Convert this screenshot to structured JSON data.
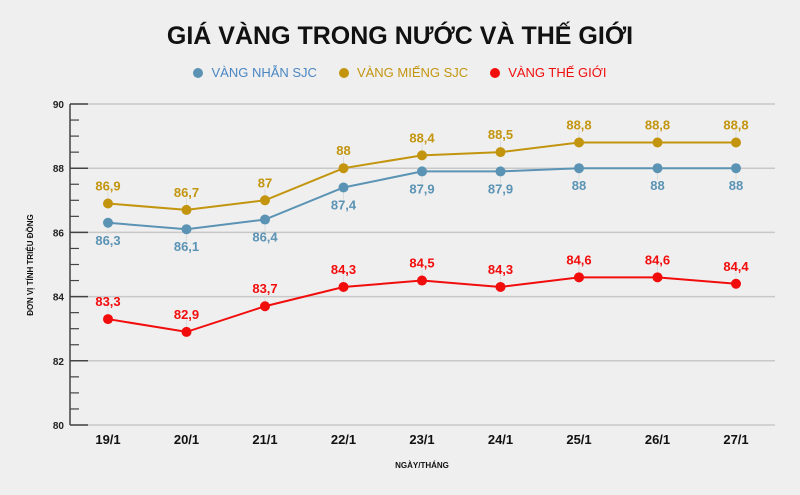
{
  "chart_data": {
    "type": "line",
    "title": "GIÁ VÀNG TRONG NƯỚC VÀ THẾ GIỚI",
    "xlabel": "NGÀY/THÁNG",
    "ylabel": "ĐƠN VỊ TÍNH TRIỆU ĐỒNG",
    "ylim": [
      80,
      90
    ],
    "yticks": [
      "80",
      "82",
      "84",
      "86",
      "88",
      "90"
    ],
    "grid": true,
    "legend_position": "top",
    "categories": [
      "19/1",
      "20/1",
      "21/1",
      "22/1",
      "23/1",
      "24/1",
      "25/1",
      "26/1",
      "27/1"
    ],
    "series": [
      {
        "name": "VÀNG NHẪN SJC",
        "color": "#5b93b4",
        "label_position": "below",
        "values": [
          86.3,
          86.1,
          86.4,
          87.4,
          87.9,
          87.9,
          88,
          88,
          88
        ],
        "labels": [
          "86,3",
          "86,1",
          "86,4",
          "87,4",
          "87,9",
          "87,9",
          "88",
          "88",
          "88"
        ]
      },
      {
        "name": "VÀNG MIẾNG SJC",
        "color": "#c3950f",
        "label_position": "above",
        "values": [
          86.9,
          86.7,
          87,
          88,
          88.4,
          88.5,
          88.8,
          88.8,
          88.8
        ],
        "labels": [
          "86,9",
          "86,7",
          "87",
          "88",
          "88,4",
          "88,5",
          "88,8",
          "88,8",
          "88,8"
        ]
      },
      {
        "name": "VÀNG THẾ GIỚI",
        "color": "#f20d0d",
        "label_position": "above",
        "values": [
          83.3,
          82.9,
          83.7,
          84.3,
          84.5,
          84.3,
          84.6,
          84.6,
          84.4
        ],
        "labels": [
          "83,3",
          "82,9",
          "83,7",
          "84,3",
          "84,5",
          "84,3",
          "84,6",
          "84,6",
          "84,4"
        ]
      }
    ]
  }
}
